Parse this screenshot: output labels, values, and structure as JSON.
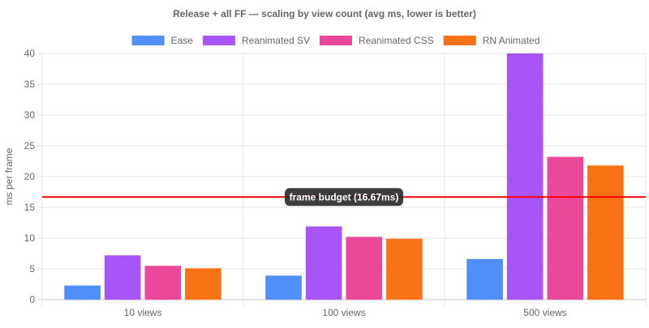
{
  "chart_data": {
    "type": "bar",
    "title": "Release + all FF — scaling by view count (avg ms, lower is better)",
    "xlabel": "",
    "ylabel": "ms per frame",
    "categories": [
      "10 views",
      "100 views",
      "500 views"
    ],
    "ylim": [
      0,
      40
    ],
    "yticks": [
      0,
      5,
      10,
      15,
      20,
      25,
      30,
      35,
      40
    ],
    "grid": true,
    "legend_position": "top-center",
    "series": [
      {
        "name": "Ease",
        "color": "#4f8ff7",
        "values": [
          2.3,
          3.9,
          6.6
        ]
      },
      {
        "name": "Reanimated SV",
        "color": "#a855f7",
        "values": [
          7.2,
          11.9,
          40
        ]
      },
      {
        "name": "Reanimated CSS",
        "color": "#ec4899",
        "values": [
          5.5,
          10.2,
          23.2
        ]
      },
      {
        "name": "RN Animated",
        "color": "#f97316",
        "values": [
          5.1,
          9.9,
          21.8
        ]
      }
    ],
    "annotation": {
      "type": "horizontal-line",
      "value": 16.67,
      "color": "#ff0000",
      "label": "frame budget (16.67ms)"
    }
  }
}
